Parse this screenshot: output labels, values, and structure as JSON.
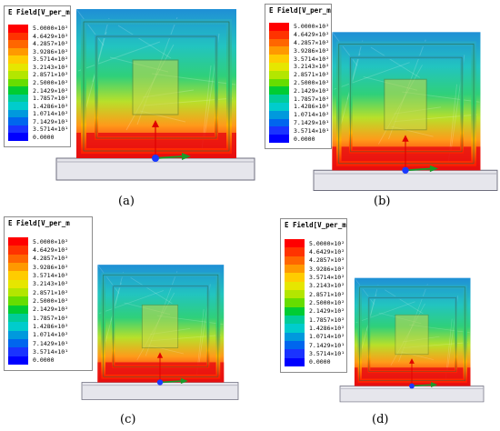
{
  "legend": {
    "title": "E Field[V_per_m",
    "labels": [
      "5.0000×10²",
      "4.6429×10²",
      "4.2857×10²",
      "3.9286×10²",
      "3.5714×10²",
      "3.2143×10²",
      "2.8571×10²",
      "2.5000×10²",
      "2.1429×10²",
      "1.7857×10²",
      "1.4286×10²",
      "1.0714×10²",
      "7.1429×10¹",
      "3.5714×10¹",
      "0.0000"
    ],
    "colors": [
      "#ff0000",
      "#ff3300",
      "#ff6600",
      "#ff9900",
      "#ffcc00",
      "#e6e600",
      "#b3e600",
      "#66dd00",
      "#00cc33",
      "#00cc99",
      "#00cccc",
      "#0099dd",
      "#0066ee",
      "#1a33ff",
      "#0000ff"
    ]
  },
  "panels": [
    {
      "caption": "(a)"
    },
    {
      "caption": "(b)"
    },
    {
      "caption": "(c)"
    },
    {
      "caption": "(d)"
    }
  ]
}
